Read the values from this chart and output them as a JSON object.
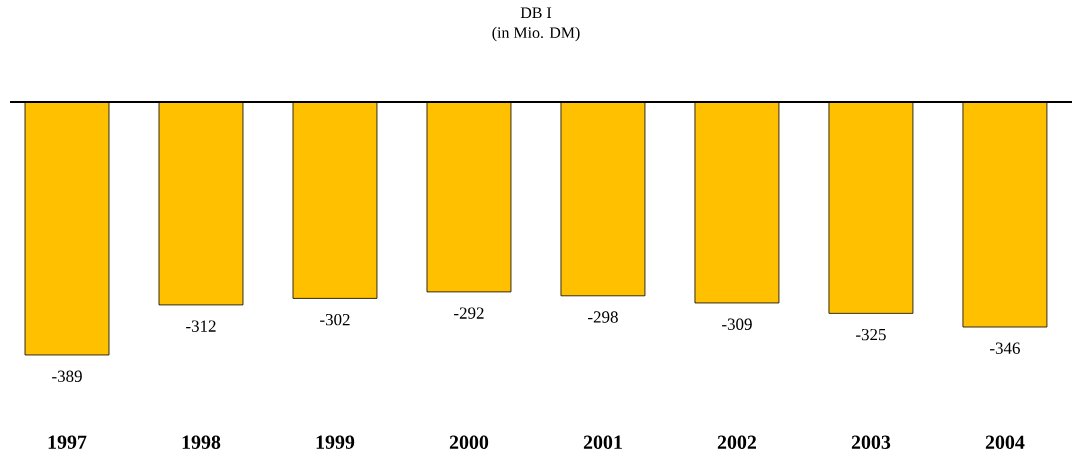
{
  "chart_data": {
    "type": "bar",
    "title": "DB I",
    "subtitle": "(in Mio. DM)",
    "categories": [
      "1997",
      "1998",
      "1999",
      "2000",
      "2001",
      "2002",
      "2003",
      "2004"
    ],
    "values": [
      -389,
      -312,
      -302,
      -292,
      -298,
      -309,
      -325,
      -346
    ],
    "color": "#ffc000",
    "data_labels": true
  }
}
